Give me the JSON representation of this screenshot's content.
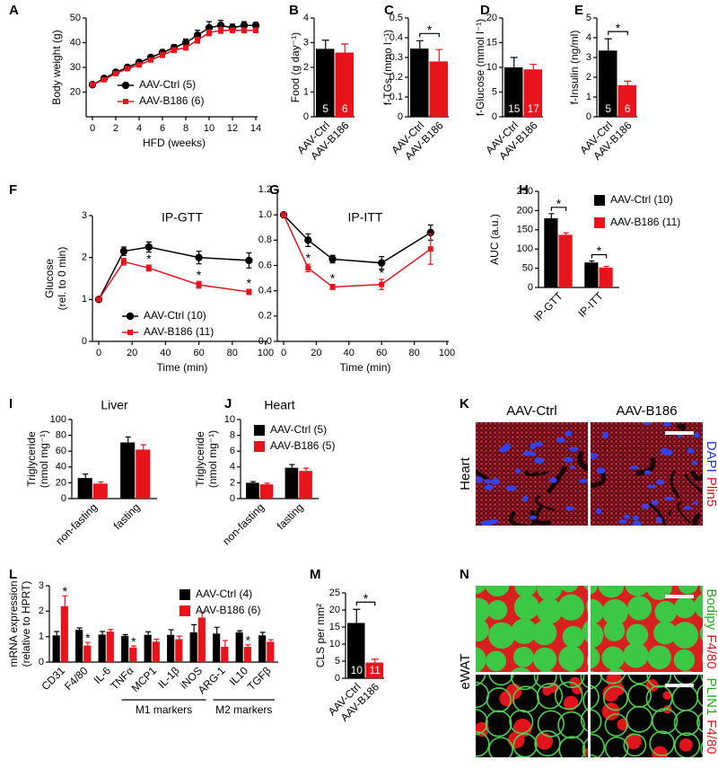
{
  "chart_data": [
    {
      "panel": "A",
      "type": "line",
      "ylabel": [
        "Body weight (g)"
      ],
      "xlabel": "HFD (weeks)",
      "x": [
        0,
        1,
        2,
        3,
        4,
        5,
        6,
        7,
        8,
        9,
        10,
        11,
        12,
        13,
        14
      ],
      "xlim": [
        0,
        14
      ],
      "xticks": [
        0,
        2,
        4,
        6,
        8,
        10,
        12,
        14
      ],
      "ylim": [
        10,
        50
      ],
      "yticks": [
        20,
        30,
        40,
        50
      ],
      "legend": "lower right",
      "series": [
        {
          "name": "AAV-Ctrl (5)",
          "color": "#000000",
          "marker": "circle",
          "values": [
            23,
            25.5,
            28,
            30,
            32,
            34,
            36,
            38,
            40,
            43,
            46,
            47,
            46,
            47,
            47
          ],
          "errors": [
            0.5,
            0.5,
            0.8,
            0.8,
            1,
            1,
            1.2,
            1.2,
            1.5,
            2,
            2.5,
            2,
            1.5,
            1.5,
            1.2
          ]
        },
        {
          "name": "AAV-B186 (6)",
          "color": "#e8141c",
          "marker": "square",
          "values": [
            23,
            25,
            27.5,
            29.5,
            31,
            33,
            35,
            37,
            38,
            41,
            44,
            45,
            45,
            45,
            45
          ],
          "errors": [
            0.5,
            0.5,
            0.6,
            0.6,
            0.8,
            0.8,
            1,
            1,
            1,
            1.2,
            1.2,
            1.2,
            1,
            1,
            1
          ]
        }
      ]
    },
    {
      "panel": "B",
      "type": "bar",
      "ylabel": [
        "Food (g day⁻¹)"
      ],
      "categories": [
        "AAV-Ctrl",
        "AAV-B186"
      ],
      "values": [
        2.75,
        2.6
      ],
      "errors": [
        0.35,
        0.35
      ],
      "colors": [
        "#000000",
        "#e8141c"
      ],
      "n_labels": [
        "5",
        "6"
      ],
      "ylim": [
        0,
        4
      ],
      "yticks": [
        0,
        1,
        2,
        3,
        4
      ]
    },
    {
      "panel": "C",
      "type": "bar",
      "ylabel": [
        "f-TGs (mmo l⁻¹)"
      ],
      "categories": [
        "AAV-Ctrl",
        "AAV-B186"
      ],
      "values": [
        0.345,
        0.28
      ],
      "errors": [
        0.04,
        0.06
      ],
      "colors": [
        "#000000",
        "#e8141c"
      ],
      "ylim": [
        0,
        0.5
      ],
      "yticks": [
        0,
        0.1,
        0.2,
        0.3,
        0.4,
        0.5
      ],
      "significance_mark": "*"
    },
    {
      "panel": "D",
      "type": "bar",
      "ylabel": [
        "f-Glucose (mmol l⁻¹)"
      ],
      "categories": [
        "AAV-Ctrl",
        "AAV-B186"
      ],
      "values": [
        10,
        9.6
      ],
      "errors": [
        2,
        1
      ],
      "colors": [
        "#000000",
        "#e8141c"
      ],
      "n_labels": [
        "15",
        "17"
      ],
      "ylim": [
        0,
        20
      ],
      "yticks": [
        0,
        5,
        10,
        15,
        20
      ]
    },
    {
      "panel": "E",
      "type": "bar",
      "ylabel": [
        "f-Insulin (ng/ml)"
      ],
      "categories": [
        "AAV-Ctrl",
        "AAV-B186"
      ],
      "values": [
        3.35,
        1.6
      ],
      "errors": [
        0.6,
        0.2
      ],
      "colors": [
        "#000000",
        "#e8141c"
      ],
      "n_labels": [
        "5",
        "6"
      ],
      "ylim": [
        0,
        5
      ],
      "yticks": [
        0,
        1,
        2,
        3,
        4,
        5
      ],
      "significance_mark": "*"
    },
    {
      "panel": "F",
      "type": "line",
      "title": "IP-GTT",
      "ylabel": [
        "Glucose",
        "(rel. to 0 min)"
      ],
      "xlabel": "Time (min)",
      "x": [
        0,
        15,
        30,
        60,
        90
      ],
      "xlim": [
        0,
        100
      ],
      "xticks": [
        0,
        20,
        40,
        60,
        80,
        100
      ],
      "ylim": [
        0,
        3
      ],
      "yticks": [
        0,
        1,
        2,
        3
      ],
      "legend": "lower left",
      "significance_mark": "*",
      "series": [
        {
          "name": "AAV-Ctrl (10)",
          "color": "#000000",
          "marker": "circle",
          "values": [
            1,
            2.15,
            2.25,
            2.0,
            1.93
          ],
          "errors": [
            0,
            0.1,
            0.12,
            0.15,
            0.18
          ]
        },
        {
          "name": "AAV-B186 (11)",
          "color": "#e8141c",
          "marker": "square",
          "values": [
            1,
            1.9,
            1.75,
            1.35,
            1.18
          ],
          "errors": [
            0,
            0.08,
            0.07,
            0.08,
            0.06
          ],
          "significant": [
            false,
            false,
            true,
            true,
            true
          ]
        }
      ]
    },
    {
      "panel": "G",
      "type": "line",
      "title": "IP-ITT",
      "xlabel": "Time (min)",
      "x": [
        0,
        15,
        30,
        60,
        90
      ],
      "xlim": [
        0,
        100
      ],
      "xticks": [
        0,
        20,
        40,
        60,
        80,
        100
      ],
      "ylim": [
        0,
        1.2
      ],
      "yticks": [
        {
          "value": 0,
          "label": "0.0"
        },
        0.2,
        0.4,
        0.6,
        0.8,
        {
          "value": 1,
          "label": "1.0"
        },
        1.2
      ],
      "significance_mark": "*",
      "series": [
        {
          "color": "#000000",
          "marker": "circle",
          "values": [
            1,
            0.8,
            0.65,
            0.62,
            0.86
          ],
          "errors": [
            0,
            0.05,
            0.03,
            0.05,
            0.06
          ]
        },
        {
          "color": "#e8141c",
          "marker": "square",
          "values": [
            1,
            0.58,
            0.43,
            0.45,
            0.73
          ],
          "errors": [
            0,
            0.03,
            0.02,
            0.04,
            0.12
          ],
          "significant": [
            false,
            true,
            true,
            true,
            false
          ]
        }
      ]
    },
    {
      "panel": "H",
      "type": "grouped_bar",
      "ylabel": [
        "AUC (a.u.)"
      ],
      "categories": [
        "IP-GTT",
        "IP-ITT"
      ],
      "ylim": [
        0,
        250
      ],
      "yticks": [
        0,
        50,
        100,
        150,
        200,
        250
      ],
      "legend": "upper right",
      "significance_mark": "*",
      "significant": [
        true,
        true
      ],
      "bracket": true,
      "series": [
        {
          "name": "AAV-Ctrl (10)",
          "color": "#000000",
          "values": [
            180,
            65
          ],
          "errors": [
            12,
            4
          ]
        },
        {
          "name": "AAV-B186 (11)",
          "color": "#e8141c",
          "values": [
            137,
            52
          ],
          "errors": [
            5,
            3
          ]
        }
      ]
    },
    {
      "panel": "I",
      "type": "grouped_bar",
      "title": "Liver",
      "ylabel": [
        "Triglyceride",
        "(nmol mg⁻¹)"
      ],
      "categories": [
        "non-fasting",
        "fasting"
      ],
      "ylim": [
        0,
        100
      ],
      "yticks": [
        0,
        20,
        40,
        60,
        80,
        100
      ],
      "series": [
        {
          "color": "#000000",
          "values": [
            26,
            71
          ],
          "errors": [
            5,
            7
          ]
        },
        {
          "color": "#e8141c",
          "values": [
            19,
            62
          ],
          "errors": [
            2,
            6
          ]
        }
      ]
    },
    {
      "panel": "J",
      "type": "grouped_bar",
      "title": "Heart",
      "ylabel": [
        "Triglyceride",
        "(nmol mg⁻¹)"
      ],
      "categories": [
        "non-fasting",
        "fasting"
      ],
      "ylim": [
        0,
        10
      ],
      "yticks": [
        0,
        2,
        4,
        6,
        8,
        10
      ],
      "legend": "upper left",
      "series": [
        {
          "name": "AAV-Ctrl (5)",
          "color": "#000000",
          "values": [
            2.0,
            3.9
          ],
          "errors": [
            0.15,
            0.4
          ]
        },
        {
          "name": "AAV-B186 (5)",
          "color": "#e8141c",
          "values": [
            1.8,
            3.5
          ],
          "errors": [
            0.15,
            0.35
          ]
        }
      ]
    },
    {
      "panel": "L",
      "type": "grouped_bar",
      "ylabel": [
        "mRNA expression",
        "(relative to HPRT)"
      ],
      "categories": [
        "CD31",
        "F4/80",
        "IL-6",
        "TNFα",
        "MCP1",
        "IL-1β",
        "iNOS",
        "ARG-1",
        "IL10",
        "TGFβ"
      ],
      "ylim": [
        0,
        3
      ],
      "yticks": [
        0,
        1,
        2,
        3
      ],
      "legend": "upper right",
      "significance_mark": "*",
      "significant": [
        true,
        true,
        false,
        true,
        false,
        false,
        false,
        false,
        true,
        false
      ],
      "groups": [
        {
          "label": "M1 markers",
          "from": 3,
          "to": 6
        },
        {
          "label": "M2 markers",
          "from": 7,
          "to": 9
        }
      ],
      "series": [
        {
          "name": "AAV-Ctrl (4)",
          "color": "#000000",
          "values": [
            1.05,
            1.27,
            1.08,
            1.03,
            1.07,
            1.07,
            1.17,
            1.12,
            1.17,
            1.05
          ],
          "errors": [
            0.15,
            0.07,
            0.12,
            0.05,
            0.12,
            0.2,
            0.3,
            0.25,
            0.06,
            0.12
          ]
        },
        {
          "name": "AAV-B186 (6)",
          "color": "#e8141c",
          "values": [
            2.2,
            0.65,
            1.2,
            0.57,
            0.8,
            0.9,
            1.75,
            0.6,
            0.6,
            0.8
          ],
          "errors": [
            0.4,
            0.12,
            0.08,
            0.06,
            0.1,
            0.12,
            0.2,
            0.25,
            0.08,
            0.08
          ]
        }
      ]
    },
    {
      "panel": "M",
      "type": "bar",
      "ylabel": [
        "CLS per mm²"
      ],
      "categories": [
        "AAV-Ctrl",
        "AAV-B186"
      ],
      "values": [
        16.2,
        4.6
      ],
      "errors": [
        4,
        1
      ],
      "colors": [
        "#000000",
        "#e8141c"
      ],
      "n_labels": [
        "10",
        "11"
      ],
      "ylim": [
        0,
        25
      ],
      "yticks": [
        0,
        5,
        10,
        15,
        20,
        25
      ],
      "significance_mark": "*"
    }
  ],
  "images": [
    {
      "panel": "K",
      "columns": [
        "AAV-Ctrl",
        "AAV-B186"
      ],
      "row_label": "Heart",
      "rows": [
        {
          "stains": [
            {
              "text": "DAPI",
              "color": "#2233dd"
            },
            {
              "text": "Plin5",
              "color": "#e8141c"
            }
          ]
        }
      ]
    },
    {
      "panel": "N",
      "row_label": "eWAT",
      "rows": [
        {
          "stains": [
            {
              "text": "Bodipy",
              "color": "#22aa22"
            },
            {
              "text": "F4/80",
              "color": "#e8141c"
            }
          ]
        },
        {
          "stains": [
            {
              "text": "PLIN1",
              "color": "#22aa22"
            },
            {
              "text": "F4/80",
              "color": "#e8141c"
            }
          ]
        }
      ]
    }
  ]
}
